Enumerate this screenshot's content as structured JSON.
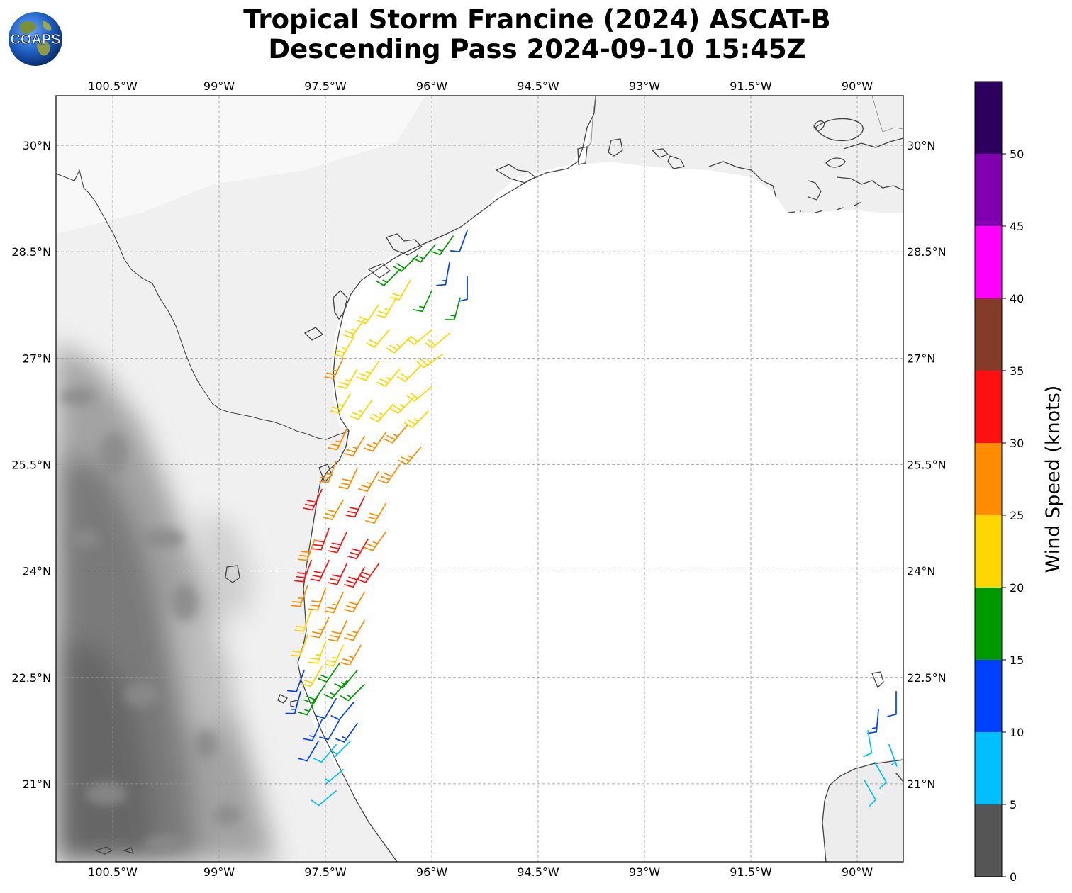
{
  "header": {
    "title_line1": "Tropical Storm Francine (2024) ASCAT-B",
    "title_line2": "Descending Pass 2024-09-10 15:45Z"
  },
  "logo": {
    "text": "COAPS",
    "icon": "globe-logo-icon"
  },
  "map": {
    "lon_ticks": [
      "100.5°W",
      "99°W",
      "97.5°W",
      "96°W",
      "94.5°W",
      "93°W",
      "91.5°W",
      "90°W"
    ],
    "lat_ticks": [
      "30°N",
      "28.5°N",
      "27°N",
      "25.5°N",
      "24°N",
      "22.5°N",
      "21°N"
    ],
    "extent": {
      "lon_min": -101.3,
      "lon_max": -89.35,
      "lat_min": 19.9,
      "lat_max": 30.7
    },
    "gridlines": true,
    "background": "grayscale topography with white ocean",
    "barb_colors_by_speed": {
      "0-5": "#555555",
      "5-10": "#00bfff",
      "10-15": "#0040ff",
      "15-20": "#009900",
      "20-25": "#ffd700",
      "25-30": "#ff8c00",
      "30-35": "#ff1010",
      "35-40": "#843c29"
    }
  },
  "colorbar": {
    "title": "Wind Speed (knots)",
    "range": [
      0,
      55
    ],
    "bands": [
      {
        "from": 0,
        "to": 5,
        "color": "#555555"
      },
      {
        "from": 5,
        "to": 10,
        "color": "#00bfff"
      },
      {
        "from": 10,
        "to": 15,
        "color": "#0040ff"
      },
      {
        "from": 15,
        "to": 20,
        "color": "#009900"
      },
      {
        "from": 20,
        "to": 25,
        "color": "#ffd700"
      },
      {
        "from": 25,
        "to": 30,
        "color": "#ff8c00"
      },
      {
        "from": 30,
        "to": 35,
        "color": "#ff1010"
      },
      {
        "from": 35,
        "to": 40,
        "color": "#843c29"
      },
      {
        "from": 40,
        "to": 45,
        "color": "#ff00ff"
      },
      {
        "from": 45,
        "to": 50,
        "color": "#8000b0"
      },
      {
        "from": 50,
        "to": 55,
        "color": "#2d0060"
      }
    ],
    "tick_labels": [
      "0",
      "5",
      "10",
      "15",
      "20",
      "25",
      "30",
      "35",
      "40",
      "45",
      "50"
    ]
  },
  "wind_barbs": [
    {
      "lon": -96.45,
      "lat": 28.25,
      "speed": 17,
      "dir": 225
    },
    {
      "lon": -96.2,
      "lat": 28.45,
      "speed": 18,
      "dir": 225
    },
    {
      "lon": -95.95,
      "lat": 28.6,
      "speed": 17,
      "dir": 220
    },
    {
      "lon": -95.7,
      "lat": 28.72,
      "speed": 16,
      "dir": 215
    },
    {
      "lon": -95.5,
      "lat": 28.8,
      "speed": 12,
      "dir": 200
    },
    {
      "lon": -95.75,
      "lat": 28.35,
      "speed": 13,
      "dir": 190
    },
    {
      "lon": -95.5,
      "lat": 28.15,
      "speed": 12,
      "dir": 180
    },
    {
      "lon": -95.6,
      "lat": 27.85,
      "speed": 16,
      "dir": 195
    },
    {
      "lon": -96.0,
      "lat": 27.95,
      "speed": 17,
      "dir": 205
    },
    {
      "lon": -96.3,
      "lat": 28.1,
      "speed": 22,
      "dir": 210
    },
    {
      "lon": -96.5,
      "lat": 27.85,
      "speed": 23,
      "dir": 210
    },
    {
      "lon": -96.75,
      "lat": 27.75,
      "speed": 22,
      "dir": 215
    },
    {
      "lon": -96.95,
      "lat": 27.55,
      "speed": 24,
      "dir": 215
    },
    {
      "lon": -97.1,
      "lat": 27.3,
      "speed": 23,
      "dir": 210
    },
    {
      "lon": -96.6,
      "lat": 27.4,
      "speed": 22,
      "dir": 220
    },
    {
      "lon": -96.3,
      "lat": 27.3,
      "speed": 24,
      "dir": 225
    },
    {
      "lon": -96.0,
      "lat": 27.4,
      "speed": 22,
      "dir": 230
    },
    {
      "lon": -95.75,
      "lat": 27.35,
      "speed": 21,
      "dir": 230
    },
    {
      "lon": -95.85,
      "lat": 27.05,
      "speed": 23,
      "dir": 235
    },
    {
      "lon": -96.15,
      "lat": 26.9,
      "speed": 22,
      "dir": 225
    },
    {
      "lon": -96.45,
      "lat": 26.85,
      "speed": 24,
      "dir": 220
    },
    {
      "lon": -96.75,
      "lat": 26.95,
      "speed": 23,
      "dir": 215
    },
    {
      "lon": -97.05,
      "lat": 26.85,
      "speed": 24,
      "dir": 210
    },
    {
      "lon": -97.25,
      "lat": 27.0,
      "speed": 25,
      "dir": 205
    },
    {
      "lon": -97.15,
      "lat": 26.5,
      "speed": 23,
      "dir": 210
    },
    {
      "lon": -96.85,
      "lat": 26.4,
      "speed": 24,
      "dir": 215
    },
    {
      "lon": -96.55,
      "lat": 26.35,
      "speed": 23,
      "dir": 220
    },
    {
      "lon": -96.25,
      "lat": 26.45,
      "speed": 24,
      "dir": 225
    },
    {
      "lon": -96.0,
      "lat": 26.6,
      "speed": 22,
      "dir": 230
    },
    {
      "lon": -96.05,
      "lat": 26.25,
      "speed": 23,
      "dir": 225
    },
    {
      "lon": -96.35,
      "lat": 26.05,
      "speed": 25,
      "dir": 220
    },
    {
      "lon": -96.65,
      "lat": 25.95,
      "speed": 26,
      "dir": 215
    },
    {
      "lon": -96.95,
      "lat": 25.9,
      "speed": 26,
      "dir": 210
    },
    {
      "lon": -97.2,
      "lat": 26.0,
      "speed": 27,
      "dir": 205
    },
    {
      "lon": -96.15,
      "lat": 25.75,
      "speed": 27,
      "dir": 220
    },
    {
      "lon": -96.45,
      "lat": 25.5,
      "speed": 28,
      "dir": 215
    },
    {
      "lon": -96.75,
      "lat": 25.4,
      "speed": 27,
      "dir": 210
    },
    {
      "lon": -97.05,
      "lat": 25.45,
      "speed": 28,
      "dir": 205
    },
    {
      "lon": -97.35,
      "lat": 25.55,
      "speed": 27,
      "dir": 200
    },
    {
      "lon": -97.55,
      "lat": 25.15,
      "speed": 32,
      "dir": 205
    },
    {
      "lon": -97.25,
      "lat": 25.0,
      "speed": 29,
      "dir": 210
    },
    {
      "lon": -96.95,
      "lat": 25.05,
      "speed": 32,
      "dir": 205
    },
    {
      "lon": -96.65,
      "lat": 24.95,
      "speed": 29,
      "dir": 210
    },
    {
      "lon": -96.65,
      "lat": 24.55,
      "speed": 27,
      "dir": 215
    },
    {
      "lon": -96.9,
      "lat": 24.45,
      "speed": 31,
      "dir": 210
    },
    {
      "lon": -97.2,
      "lat": 24.55,
      "speed": 32,
      "dir": 205
    },
    {
      "lon": -97.45,
      "lat": 24.6,
      "speed": 31,
      "dir": 200
    },
    {
      "lon": -97.65,
      "lat": 24.45,
      "speed": 28,
      "dir": 200
    },
    {
      "lon": -97.7,
      "lat": 24.15,
      "speed": 32,
      "dir": 200
    },
    {
      "lon": -97.45,
      "lat": 24.15,
      "speed": 31,
      "dir": 205
    },
    {
      "lon": -97.2,
      "lat": 24.1,
      "speed": 32,
      "dir": 205
    },
    {
      "lon": -96.95,
      "lat": 24.05,
      "speed": 31,
      "dir": 210
    },
    {
      "lon": -96.75,
      "lat": 24.1,
      "speed": 32,
      "dir": 215
    },
    {
      "lon": -96.95,
      "lat": 23.7,
      "speed": 28,
      "dir": 210
    },
    {
      "lon": -97.25,
      "lat": 23.7,
      "speed": 27,
      "dir": 205
    },
    {
      "lon": -97.5,
      "lat": 23.75,
      "speed": 29,
      "dir": 200
    },
    {
      "lon": -97.75,
      "lat": 23.8,
      "speed": 26,
      "dir": 200
    },
    {
      "lon": -97.7,
      "lat": 23.45,
      "speed": 22,
      "dir": 200
    },
    {
      "lon": -97.45,
      "lat": 23.35,
      "speed": 26,
      "dir": 205
    },
    {
      "lon": -97.2,
      "lat": 23.3,
      "speed": 28,
      "dir": 205
    },
    {
      "lon": -96.95,
      "lat": 23.3,
      "speed": 27,
      "dir": 210
    },
    {
      "lon": -97.0,
      "lat": 22.95,
      "speed": 26,
      "dir": 210
    },
    {
      "lon": -97.25,
      "lat": 22.95,
      "speed": 24,
      "dir": 205
    },
    {
      "lon": -97.5,
      "lat": 23.0,
      "speed": 23,
      "dir": 200
    },
    {
      "lon": -97.75,
      "lat": 23.1,
      "speed": 22,
      "dir": 200
    },
    {
      "lon": -97.55,
      "lat": 22.65,
      "speed": 22,
      "dir": 210
    },
    {
      "lon": -97.3,
      "lat": 22.7,
      "speed": 18,
      "dir": 215
    },
    {
      "lon": -97.05,
      "lat": 22.6,
      "speed": 17,
      "dir": 220
    },
    {
      "lon": -96.95,
      "lat": 22.4,
      "speed": 16,
      "dir": 225
    },
    {
      "lon": -97.2,
      "lat": 22.45,
      "speed": 17,
      "dir": 220
    },
    {
      "lon": -97.5,
      "lat": 22.4,
      "speed": 18,
      "dir": 215
    },
    {
      "lon": -97.8,
      "lat": 22.6,
      "speed": 12,
      "dir": 200
    },
    {
      "lon": -97.85,
      "lat": 22.3,
      "speed": 13,
      "dir": 195
    },
    {
      "lon": -97.6,
      "lat": 22.25,
      "speed": 17,
      "dir": 210
    },
    {
      "lon": -97.35,
      "lat": 22.2,
      "speed": 12,
      "dir": 210
    },
    {
      "lon": -97.1,
      "lat": 22.15,
      "speed": 11,
      "dir": 220
    },
    {
      "lon": -97.05,
      "lat": 21.85,
      "speed": 13,
      "dir": 215
    },
    {
      "lon": -97.3,
      "lat": 21.9,
      "speed": 12,
      "dir": 210
    },
    {
      "lon": -97.55,
      "lat": 21.9,
      "speed": 13,
      "dir": 205
    },
    {
      "lon": -97.6,
      "lat": 21.6,
      "speed": 11,
      "dir": 210
    },
    {
      "lon": -97.35,
      "lat": 21.55,
      "speed": 8,
      "dir": 220
    },
    {
      "lon": -97.15,
      "lat": 21.6,
      "speed": 7,
      "dir": 225
    },
    {
      "lon": -97.25,
      "lat": 21.2,
      "speed": 7,
      "dir": 230
    },
    {
      "lon": -97.35,
      "lat": 20.9,
      "speed": 8,
      "dir": 230
    },
    {
      "lon": -89.45,
      "lat": 22.3,
      "speed": 12,
      "dir": 180
    },
    {
      "lon": -89.7,
      "lat": 22.05,
      "speed": 13,
      "dir": 185
    },
    {
      "lon": -89.85,
      "lat": 21.75,
      "speed": 8,
      "dir": 170
    },
    {
      "lon": -89.55,
      "lat": 21.55,
      "speed": 7,
      "dir": 160
    },
    {
      "lon": -89.75,
      "lat": 21.3,
      "speed": 9,
      "dir": 150
    },
    {
      "lon": -89.45,
      "lat": 21.15,
      "speed": 4,
      "dir": 140
    },
    {
      "lon": -89.9,
      "lat": 21.05,
      "speed": 8,
      "dir": 150
    }
  ]
}
